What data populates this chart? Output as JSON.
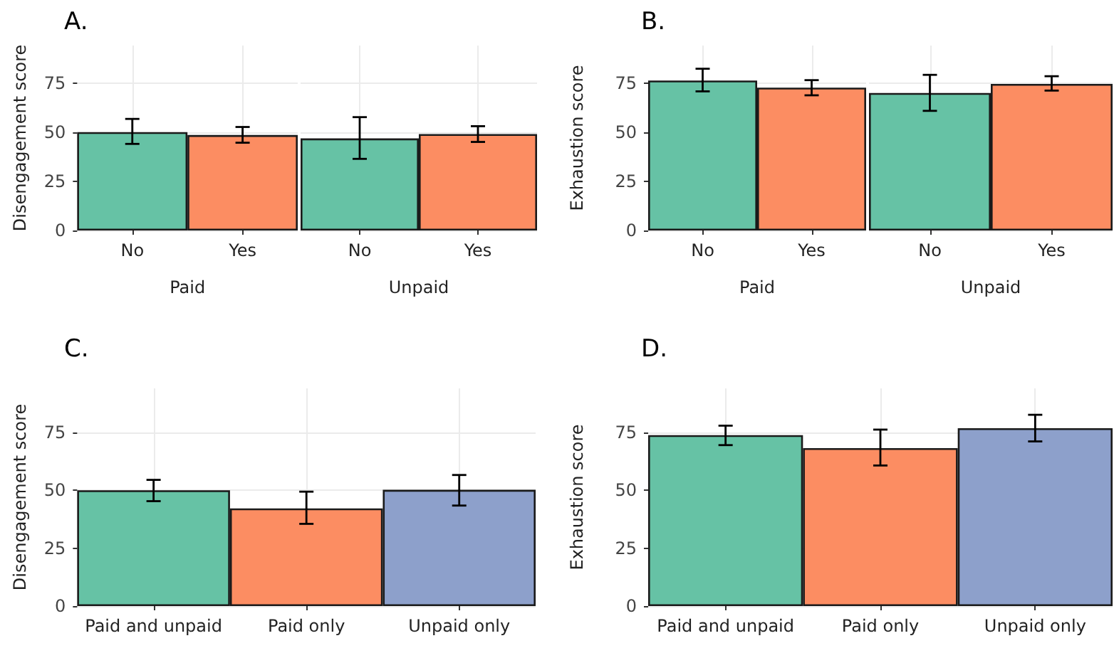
{
  "chart_data": [
    {
      "type": "bar",
      "title": "A.",
      "ylabel": "Disengagement score",
      "xlabel": "Paid",
      "categories": [
        "No",
        "Yes"
      ],
      "values": [
        50,
        48.5
      ],
      "colors": [
        "#66c2a5",
        "#fc8d62"
      ],
      "errors": [
        [
          44,
          56.7
        ],
        [
          44.6,
          52.6
        ]
      ],
      "ylim": [
        0,
        94
      ],
      "yticks": [
        0,
        25,
        50,
        75
      ],
      "grid": true
    },
    {
      "type": "bar",
      "xlabel": "Unpaid",
      "categories": [
        "No",
        "Yes"
      ],
      "values": [
        46.8,
        49
      ],
      "colors": [
        "#66c2a5",
        "#fc8d62"
      ],
      "errors": [
        [
          36.4,
          57.6
        ],
        [
          45,
          53
        ]
      ],
      "ylim": [
        0,
        94
      ],
      "yticks": [
        0,
        25,
        50,
        75
      ],
      "grid": true,
      "tick_labels": "x"
    },
    {
      "type": "bar",
      "title": "B.",
      "ylabel": "Exhaustion score",
      "xlabel": "Paid",
      "categories": [
        "No",
        "Yes"
      ],
      "values": [
        76.2,
        72.6
      ],
      "colors": [
        "#66c2a5",
        "#fc8d62"
      ],
      "errors": [
        [
          70.7,
          82.2
        ],
        [
          68.7,
          76.4
        ]
      ],
      "ylim": [
        0,
        94
      ],
      "yticks": [
        0,
        25,
        50,
        75
      ],
      "grid": true
    },
    {
      "type": "bar",
      "xlabel": "Unpaid",
      "categories": [
        "No",
        "Yes"
      ],
      "values": [
        69.9,
        74.5
      ],
      "colors": [
        "#66c2a5",
        "#fc8d62"
      ],
      "errors": [
        [
          60.8,
          79.1
        ],
        [
          71.1,
          78.4
        ]
      ],
      "ylim": [
        0,
        94
      ],
      "yticks": [
        0,
        25,
        50,
        75
      ],
      "grid": true,
      "tick_labels": "x"
    },
    {
      "type": "bar",
      "title": "C.",
      "ylabel": "Disengagement score",
      "categories": [
        "Paid and unpaid",
        "Paid only",
        "Unpaid only"
      ],
      "values": [
        50,
        42.2,
        50.2
      ],
      "colors": [
        "#66c2a5",
        "#fc8d62",
        "#8da0cb"
      ],
      "errors": [
        [
          45.3,
          54.5
        ],
        [
          35.5,
          49.4
        ],
        [
          43.4,
          56.6
        ]
      ],
      "ylim": [
        0,
        94
      ],
      "yticks": [
        0,
        25,
        50,
        75
      ],
      "grid": true
    },
    {
      "type": "bar",
      "title": "D.",
      "ylabel": "Exhaustion score",
      "categories": [
        "Paid and unpaid",
        "Paid only",
        "Unpaid only"
      ],
      "values": [
        73.8,
        68.2,
        76.8
      ],
      "colors": [
        "#66c2a5",
        "#fc8d62",
        "#8da0cb"
      ],
      "errors": [
        [
          69.5,
          77.9
        ],
        [
          60.7,
          76.2
        ],
        [
          71.1,
          82.6
        ]
      ],
      "ylim": [
        0,
        94
      ],
      "yticks": [
        0,
        25,
        50,
        75
      ],
      "grid": true
    }
  ]
}
